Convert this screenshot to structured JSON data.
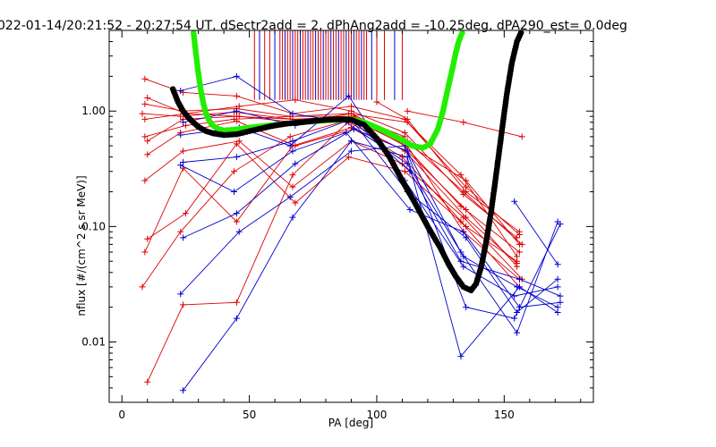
{
  "chart_data": {
    "type": "line",
    "title": "022-01-14/20:21:52 - 20:27:54 UT, dSectr2add = 2, dPhAng2add = -10.25deg, dPA290_est=    0.0deg",
    "xlabel": "PA [deg]",
    "ylabel": "nflux [#/(cm^2 s sr MeV)]",
    "xlim": [
      -5,
      185
    ],
    "ylim": [
      0.003,
      5.0
    ],
    "yscale": "log",
    "grid": false,
    "colors": {
      "red": "#dd0000",
      "blue": "#0000cc",
      "green": "#22ee00",
      "black": "#000000",
      "axes": "#000000"
    },
    "x_ticks": [
      {
        "value": 0,
        "label": "0"
      },
      {
        "value": 50,
        "label": "50"
      },
      {
        "value": 100,
        "label": "100"
      },
      {
        "value": 150,
        "label": "150"
      }
    ],
    "y_ticks": [
      {
        "value": 0.01,
        "label": "0.01"
      },
      {
        "value": 0.1,
        "label": "0.10"
      },
      {
        "value": 1.0,
        "label": "1.00"
      }
    ],
    "vertical_markers_pa": [
      52,
      54,
      56,
      58,
      60,
      62,
      63,
      64,
      65,
      66,
      67,
      68,
      69,
      70,
      71,
      72,
      73,
      74,
      75,
      76,
      77,
      78,
      79,
      80,
      81,
      82,
      83,
      84,
      85,
      86,
      87,
      88,
      89,
      90,
      91,
      92,
      93,
      94,
      95,
      96,
      98,
      100,
      103,
      107,
      110
    ],
    "series": [
      {
        "color": "red",
        "lines": [
          {
            "x": [
              9,
              24,
              45,
              67,
              90,
              111,
              135,
              156
            ],
            "y": [
              1.9,
              1.45,
              1.35,
              0.95,
              1.1,
              0.85,
              0.22,
              0.085
            ]
          },
          {
            "x": [
              10,
              25,
              46,
              68,
              90,
              111,
              134,
              155
            ],
            "y": [
              1.3,
              0.95,
              1.1,
              1.25,
              1.0,
              0.65,
              0.19,
              0.08
            ]
          },
          {
            "x": [
              9,
              24,
              45,
              66,
              89,
              112,
              133,
              155
            ],
            "y": [
              1.15,
              1.0,
              1.05,
              0.9,
              0.95,
              0.8,
              0.28,
              0.055
            ]
          },
          {
            "x": [
              8,
              23,
              44,
              67,
              91,
              110,
              135,
              156
            ],
            "y": [
              0.95,
              0.9,
              0.98,
              0.85,
              0.9,
              0.55,
              0.25,
              0.07
            ]
          },
          {
            "x": [
              9,
              25,
              46,
              68,
              90,
              112,
              134,
              157
            ],
            "y": [
              0.85,
              0.95,
              0.9,
              0.8,
              0.95,
              0.55,
              0.2,
              0.07
            ]
          },
          {
            "x": [
              10,
              24,
              45,
              67,
              89,
              111,
              135,
              155
            ],
            "y": [
              0.55,
              0.85,
              0.9,
              0.85,
              0.8,
              0.45,
              0.12,
              0.048
            ]
          },
          {
            "x": [
              9,
              25,
              44,
              66,
              90,
              111,
              133,
              156
            ],
            "y": [
              0.6,
              0.75,
              0.85,
              0.9,
              0.9,
              0.5,
              0.15,
              0.06
            ]
          },
          {
            "x": [
              10,
              23,
              45,
              68,
              91,
              112,
              135,
              155
            ],
            "y": [
              0.42,
              0.65,
              0.82,
              0.5,
              0.7,
              0.45,
              0.14,
              0.045
            ]
          },
          {
            "x": [
              9,
              24,
              46,
              67,
              90,
              110,
              134,
              157
            ],
            "y": [
              0.25,
              0.45,
              0.55,
              0.22,
              0.55,
              0.35,
              0.12,
              0.035
            ]
          },
          {
            "x": [
              10,
              25,
              45,
              68,
              89,
              111,
              133,
              156
            ],
            "y": [
              0.078,
              0.13,
              0.52,
              0.16,
              0.4,
              0.3,
              0.11,
              0.03
            ]
          },
          {
            "x": [
              9,
              24,
              45,
              67,
              90,
              110,
              135,
              155
            ],
            "y": [
              0.06,
              0.32,
              0.11,
              0.5,
              0.72,
              0.4,
              0.1,
              0.05
            ]
          },
          {
            "x": [
              8,
              23,
              44,
              66,
              90,
              112,
              134,
              156
            ],
            "y": [
              0.03,
              0.09,
              0.3,
              0.6,
              0.85,
              0.5,
              0.09,
              0.035
            ]
          },
          {
            "x": [
              10,
              24,
              45,
              67,
              91,
              111
            ],
            "y": [
              0.0045,
              0.021,
              0.022,
              0.28,
              0.9,
              0.6
            ]
          },
          {
            "x": [
              112,
              134,
              157
            ],
            "y": [
              1.0,
              0.8,
              0.6
            ]
          },
          {
            "x": [
              100,
              112,
              135,
              156
            ],
            "y": [
              1.2,
              0.85,
              0.2,
              0.09
            ]
          }
        ]
      },
      {
        "color": "blue",
        "lines": [
          {
            "x": [
              23,
              45,
              67,
              88,
              112,
              134,
              155,
              171
            ],
            "y": [
              1.5,
              2.0,
              0.95,
              0.8,
              0.35,
              0.055,
              0.03,
              0.02
            ]
          },
          {
            "x": [
              24,
              45,
              68,
              90,
              113,
              133,
              156,
              172
            ],
            "y": [
              0.8,
              1.0,
              0.75,
              0.85,
              0.3,
              0.05,
              0.035,
              0.025
            ]
          },
          {
            "x": [
              23,
              46,
              66,
              89,
              111,
              134,
              154,
              171
            ],
            "y": [
              0.62,
              0.72,
              0.5,
              1.35,
              0.25,
              0.045,
              0.025,
              0.03
            ]
          },
          {
            "x": [
              24,
              45,
              67,
              90,
              112,
              135,
              155,
              171
            ],
            "y": [
              0.36,
              0.4,
              0.55,
              0.85,
              0.2,
              0.08,
              0.018,
              0.035
            ]
          },
          {
            "x": [
              23,
              44,
              67,
              88,
              113,
              134,
              156,
              172
            ],
            "y": [
              0.34,
              0.2,
              0.45,
              0.65,
              0.14,
              0.09,
              0.02,
              0.022
            ]
          },
          {
            "x": [
              24,
              45,
              68,
              91,
              112,
              133,
              155,
              171
            ],
            "y": [
              0.08,
              0.13,
              0.35,
              0.7,
              0.45,
              0.06,
              0.012,
              0.11
            ]
          },
          {
            "x": [
              23,
              46,
              66,
              90,
              111,
              135,
              154,
              172
            ],
            "y": [
              0.026,
              0.09,
              0.18,
              0.45,
              0.5,
              0.02,
              0.016,
              0.105
            ]
          },
          {
            "x": [
              24,
              45,
              67,
              90,
              112,
              133,
              156,
              171
            ],
            "y": [
              0.0038,
              0.016,
              0.12,
              0.55,
              0.4,
              0.0075,
              0.03,
              0.018
            ]
          },
          {
            "x": [
              154,
              171
            ],
            "y": [
              0.165,
              0.047
            ]
          }
        ]
      },
      {
        "color": "green",
        "style": "thick-dots",
        "x": [
          28,
          29,
          30,
          31,
          32,
          33,
          34,
          35,
          36,
          38,
          40,
          44,
          50,
          60,
          70,
          80,
          90,
          95,
          100,
          105,
          110,
          114,
          118,
          121,
          124,
          126,
          128,
          130,
          131,
          132,
          133,
          134
        ],
        "y": [
          5.0,
          3.2,
          2.1,
          1.5,
          1.15,
          0.95,
          0.85,
          0.78,
          0.74,
          0.7,
          0.68,
          0.69,
          0.72,
          0.76,
          0.8,
          0.83,
          0.85,
          0.8,
          0.72,
          0.64,
          0.56,
          0.5,
          0.48,
          0.52,
          0.7,
          1.0,
          1.6,
          2.5,
          3.2,
          3.9,
          4.5,
          5.0
        ]
      },
      {
        "color": "black",
        "style": "thick-dots",
        "x": [
          20,
          22,
          24,
          26,
          28,
          30,
          33,
          36,
          40,
          45,
          50,
          55,
          60,
          65,
          70,
          75,
          80,
          85,
          90,
          95,
          100,
          105,
          110,
          115,
          120,
          125,
          128,
          131,
          134,
          137,
          139,
          141,
          143,
          145,
          147,
          149,
          151,
          153,
          155,
          157
        ],
        "y": [
          1.55,
          1.2,
          1.0,
          0.88,
          0.8,
          0.73,
          0.67,
          0.64,
          0.62,
          0.63,
          0.67,
          0.71,
          0.75,
          0.78,
          0.8,
          0.82,
          0.84,
          0.85,
          0.84,
          0.76,
          0.58,
          0.4,
          0.25,
          0.16,
          0.1,
          0.065,
          0.048,
          0.037,
          0.03,
          0.028,
          0.032,
          0.045,
          0.075,
          0.14,
          0.3,
          0.65,
          1.4,
          2.6,
          4.0,
          5.0
        ]
      }
    ]
  }
}
